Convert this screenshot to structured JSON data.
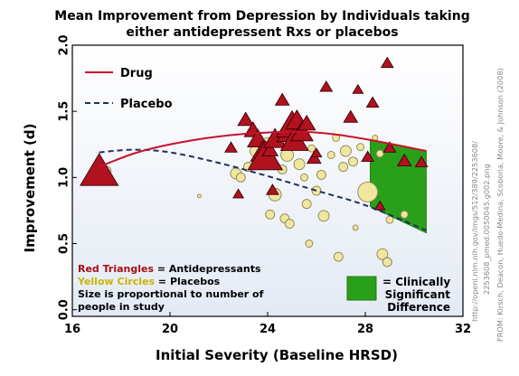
{
  "chart_data": {
    "type": "scatter",
    "title": "Mean Improvement from Depression by Individuals taking",
    "subtitle": "either antidepressent Rxs or placebos",
    "xlabel": "Initial Severity (Baseline HRSD)",
    "ylabel": "Improvement (d)",
    "xlim": [
      16,
      32
    ],
    "ylim": [
      -0.05,
      2.0
    ],
    "xticks": [
      "16",
      "20",
      "24",
      "28",
      "32"
    ],
    "yticks": [
      "0.0",
      "0.5",
      "1.0",
      "1.5",
      "2.0"
    ],
    "legend": {
      "placement": "top-left",
      "items": [
        {
          "label": "Drug",
          "style": "solid",
          "color": "#c8102e"
        },
        {
          "label": "Placebo",
          "style": "dashed",
          "color": "#1f2e5c"
        }
      ]
    },
    "notes": [
      {
        "runs": [
          {
            "text": "Red Triangles",
            "color": "#a50f15"
          },
          {
            "text": " = Antidepressants",
            "color": "#000000"
          }
        ]
      },
      {
        "runs": [
          {
            "text": "Yellow Circles",
            "color": "#c8b400"
          },
          {
            "text": " = Placebos",
            "color": "#000000"
          }
        ]
      },
      {
        "runs": [
          {
            "text": "Size is proportional to number of",
            "color": "#000000"
          }
        ]
      },
      {
        "runs": [
          {
            "text": "people in study",
            "color": "#000000"
          }
        ]
      }
    ],
    "significance_label": [
      "= Clinically",
      "Significant",
      "Difference"
    ],
    "credit_lines": [
      "http://openi.nlm.nih.gov/imgs/512/389/2253608/",
      "2253608_pmed.0050045.g002.png",
      "FROM: Kirsch, Deacon, Huedo-Medina, Scoboria, Moore, & Johnson (2008)"
    ],
    "colors": {
      "drug": "#c8102e",
      "drug_marker": "#b0121f",
      "placebo_line": "#1f2e5c",
      "placebo_marker": "#efe6a0",
      "significance": "#2aa01a",
      "plot_background": "#e9eef6"
    },
    "drug_curve": [
      [
        17.1,
        1.08
      ],
      [
        18.5,
        1.18
      ],
      [
        20,
        1.25
      ],
      [
        22,
        1.31
      ],
      [
        24,
        1.34
      ],
      [
        26,
        1.34
      ],
      [
        28,
        1.29
      ],
      [
        30.5,
        1.2
      ]
    ],
    "placebo_curve": [
      [
        17.1,
        1.19
      ],
      [
        18.5,
        1.21
      ],
      [
        20,
        1.19
      ],
      [
        22,
        1.11
      ],
      [
        24,
        1.01
      ],
      [
        26,
        0.9
      ],
      [
        28,
        0.79
      ],
      [
        30.5,
        0.6
      ]
    ],
    "significance_region": [
      [
        28.2,
        1.28
      ],
      [
        30.5,
        1.2
      ],
      [
        30.5,
        0.58
      ],
      [
        28.2,
        0.78
      ]
    ],
    "drug_studies": [
      {
        "x": 17.1,
        "y": 1.03,
        "size": 22
      },
      {
        "x": 23.1,
        "y": 1.43,
        "size": 9
      },
      {
        "x": 23.4,
        "y": 1.35,
        "size": 10
      },
      {
        "x": 23.6,
        "y": 1.28,
        "size": 12
      },
      {
        "x": 23.8,
        "y": 1.18,
        "size": 14
      },
      {
        "x": 23.9,
        "y": 1.14,
        "size": 20
      },
      {
        "x": 24.1,
        "y": 1.2,
        "size": 9
      },
      {
        "x": 24.3,
        "y": 1.28,
        "size": 13
      },
      {
        "x": 24.6,
        "y": 1.58,
        "size": 8
      },
      {
        "x": 24.8,
        "y": 1.32,
        "size": 12
      },
      {
        "x": 25.0,
        "y": 1.38,
        "size": 18
      },
      {
        "x": 25.1,
        "y": 1.27,
        "size": 16
      },
      {
        "x": 25.2,
        "y": 1.42,
        "size": 13
      },
      {
        "x": 25.4,
        "y": 1.33,
        "size": 13
      },
      {
        "x": 25.6,
        "y": 1.4,
        "size": 10
      },
      {
        "x": 25.9,
        "y": 1.14,
        "size": 8
      },
      {
        "x": 26.4,
        "y": 1.68,
        "size": 7
      },
      {
        "x": 27.4,
        "y": 1.45,
        "size": 8
      },
      {
        "x": 28.1,
        "y": 1.15,
        "size": 7
      },
      {
        "x": 28.3,
        "y": 1.56,
        "size": 7
      },
      {
        "x": 28.9,
        "y": 1.86,
        "size": 7
      },
      {
        "x": 29.0,
        "y": 1.22,
        "size": 7
      },
      {
        "x": 29.6,
        "y": 1.12,
        "size": 8
      },
      {
        "x": 30.3,
        "y": 1.11,
        "size": 7
      },
      {
        "x": 22.5,
        "y": 1.22,
        "size": 7
      },
      {
        "x": 24.2,
        "y": 0.9,
        "size": 7
      },
      {
        "x": 27.7,
        "y": 1.66,
        "size": 6
      },
      {
        "x": 28.6,
        "y": 0.78,
        "size": 6
      },
      {
        "x": 22.8,
        "y": 0.87,
        "size": 6
      },
      {
        "x": 26.0,
        "y": 1.18,
        "size": 6
      }
    ],
    "placebo_studies": [
      {
        "x": 17.4,
        "y": 1.05,
        "size": 5
      },
      {
        "x": 21.2,
        "y": 0.86,
        "size": 2
      },
      {
        "x": 22.7,
        "y": 1.03,
        "size": 6
      },
      {
        "x": 22.9,
        "y": 1.0,
        "size": 5
      },
      {
        "x": 23.2,
        "y": 1.08,
        "size": 5
      },
      {
        "x": 23.5,
        "y": 1.2,
        "size": 6
      },
      {
        "x": 24.0,
        "y": 1.26,
        "size": 6
      },
      {
        "x": 24.3,
        "y": 0.87,
        "size": 7
      },
      {
        "x": 24.1,
        "y": 0.72,
        "size": 5
      },
      {
        "x": 24.6,
        "y": 1.06,
        "size": 5
      },
      {
        "x": 24.8,
        "y": 1.17,
        "size": 7
      },
      {
        "x": 24.7,
        "y": 0.69,
        "size": 5
      },
      {
        "x": 24.9,
        "y": 0.65,
        "size": 5
      },
      {
        "x": 25.3,
        "y": 1.1,
        "size": 6
      },
      {
        "x": 25.5,
        "y": 1.0,
        "size": 4
      },
      {
        "x": 25.6,
        "y": 0.8,
        "size": 5
      },
      {
        "x": 25.7,
        "y": 0.5,
        "size": 4
      },
      {
        "x": 25.8,
        "y": 1.22,
        "size": 4
      },
      {
        "x": 26.0,
        "y": 0.9,
        "size": 5
      },
      {
        "x": 26.2,
        "y": 1.02,
        "size": 5
      },
      {
        "x": 26.3,
        "y": 0.71,
        "size": 6
      },
      {
        "x": 26.6,
        "y": 1.17,
        "size": 4
      },
      {
        "x": 26.9,
        "y": 0.4,
        "size": 5
      },
      {
        "x": 27.1,
        "y": 1.08,
        "size": 5
      },
      {
        "x": 27.2,
        "y": 1.2,
        "size": 6
      },
      {
        "x": 27.5,
        "y": 1.12,
        "size": 5
      },
      {
        "x": 27.8,
        "y": 1.23,
        "size": 4
      },
      {
        "x": 28.1,
        "y": 0.89,
        "size": 11
      },
      {
        "x": 28.6,
        "y": 1.18,
        "size": 4
      },
      {
        "x": 28.7,
        "y": 0.42,
        "size": 6
      },
      {
        "x": 28.9,
        "y": 0.36,
        "size": 5
      },
      {
        "x": 29.0,
        "y": 0.68,
        "size": 4
      },
      {
        "x": 29.6,
        "y": 0.72,
        "size": 4
      },
      {
        "x": 26.8,
        "y": 1.3,
        "size": 4
      },
      {
        "x": 28.4,
        "y": 1.3,
        "size": 3
      },
      {
        "x": 27.6,
        "y": 0.62,
        "size": 3
      }
    ]
  }
}
